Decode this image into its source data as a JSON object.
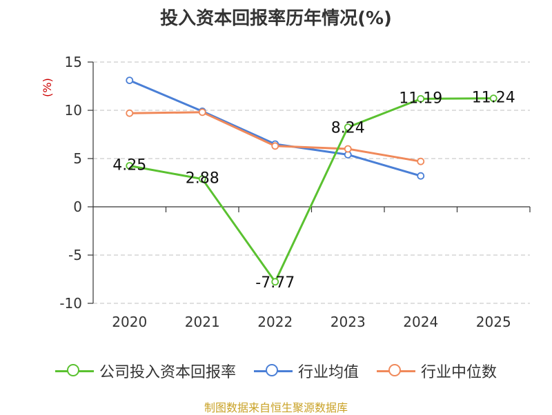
{
  "chart_data": {
    "type": "line",
    "title": "投入资本回报率历年情况(%)",
    "ylabel": "(%)",
    "xlabel": "",
    "categories": [
      "2020",
      "2021",
      "2022",
      "2023",
      "2024",
      "2025"
    ],
    "y_ticks": [
      15,
      10,
      5,
      0,
      -5,
      -10
    ],
    "ylim": [
      -10,
      15
    ],
    "grid": true,
    "legend_position": "bottom",
    "series": [
      {
        "name": "公司投入资本回报率",
        "color": "#5ac130",
        "values": [
          4.25,
          2.88,
          -7.77,
          8.24,
          11.19,
          11.24
        ],
        "labels": [
          "4.25",
          "2.88",
          "-7.77",
          "8.24",
          "11.19",
          "11.24"
        ]
      },
      {
        "name": "行业均值",
        "color": "#4a7fd6",
        "values": [
          13.1,
          9.9,
          6.5,
          5.4,
          3.2,
          null
        ]
      },
      {
        "name": "行业中位数",
        "color": "#f0895a",
        "values": [
          9.7,
          9.8,
          6.3,
          6.0,
          4.7,
          null
        ]
      }
    ],
    "source": "制图数据来自恒生聚源数据库"
  }
}
